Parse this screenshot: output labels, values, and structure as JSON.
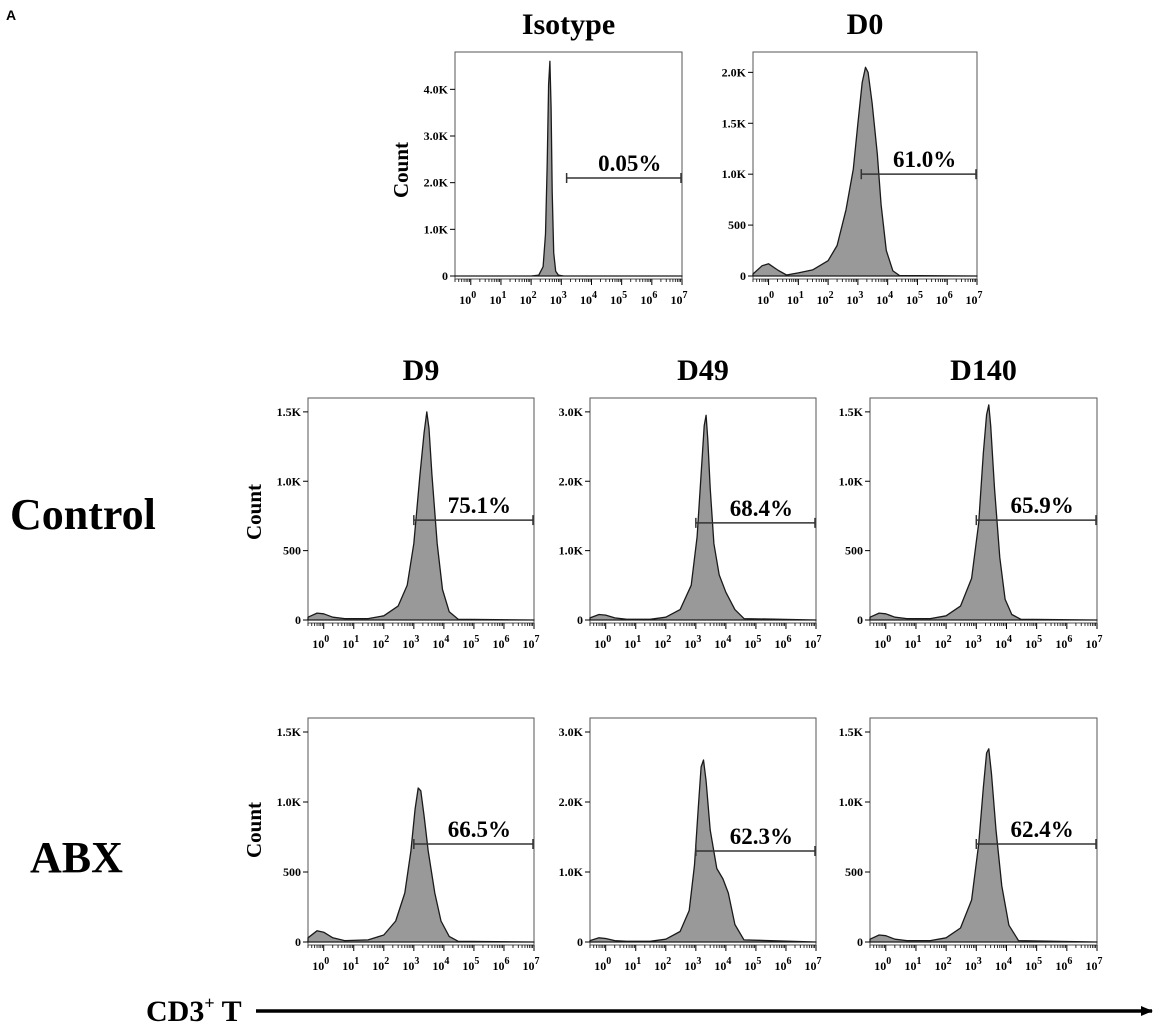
{
  "figure": {
    "panel_letter": "A",
    "row_labels": [
      "Control",
      "ABX"
    ],
    "count_label": "Count",
    "x_axis_label_main": "CD3",
    "x_axis_label_sup": "+",
    "x_axis_label_suffix": " T",
    "colors": {
      "fill": "#999999",
      "stroke": "#1a1a1a",
      "frame": "#555555"
    }
  },
  "chart_data": [
    {
      "type": "area",
      "panel": "Isotype",
      "title": "Isotype",
      "ylabel": "Count",
      "y_ticks": [
        0,
        1000,
        2000,
        3000,
        4000
      ],
      "y_tick_labels": [
        "0",
        "1.0K",
        "2.0K",
        "3.0K",
        "4.0K"
      ],
      "ylim": [
        0,
        4800
      ],
      "x_scale": "log",
      "x_ticks": [
        1,
        10,
        100,
        1000,
        10000,
        100000,
        1000000,
        10000000
      ],
      "x_tick_labels": [
        "10^0",
        "10^1",
        "10^2",
        "10^3",
        "10^4",
        "10^5",
        "10^6",
        "10^7"
      ],
      "xlim": [
        0.3,
        10000000
      ],
      "gate": {
        "label": "0.05%",
        "from": 1500,
        "to": 10000000,
        "count_level": 2100
      },
      "curve": {
        "x": [
          0.3,
          100,
          180,
          250,
          300,
          340,
          380,
          420,
          460,
          500,
          560,
          650,
          800,
          1200,
          10000000
        ],
        "y": [
          0,
          0,
          20,
          200,
          900,
          2400,
          4100,
          4600,
          3600,
          1800,
          500,
          100,
          20,
          0,
          0
        ]
      }
    },
    {
      "type": "area",
      "panel": "D0",
      "title": "D0",
      "y_ticks": [
        0,
        500,
        1000,
        1500,
        2000
      ],
      "y_tick_labels": [
        "0",
        "500",
        "1.0K",
        "1.5K",
        "2.0K"
      ],
      "ylim": [
        0,
        2200
      ],
      "x_scale": "log",
      "x_ticks": [
        1,
        10,
        100,
        1000,
        10000,
        100000,
        1000000,
        10000000
      ],
      "x_tick_labels": [
        "10^0",
        "10^1",
        "10^2",
        "10^3",
        "10^4",
        "10^5",
        "10^6",
        "10^7"
      ],
      "xlim": [
        0.3,
        10000000
      ],
      "gate": {
        "label": "61.0%",
        "from": 1300,
        "to": 10000000,
        "count_level": 1000
      },
      "curve": {
        "x": [
          0.3,
          0.6,
          1.0,
          2.0,
          4.0,
          10,
          30,
          100,
          200,
          400,
          700,
          1000,
          1400,
          1800,
          2200,
          3000,
          4500,
          6000,
          9000,
          15000,
          25000,
          10000000
        ],
        "y": [
          20,
          100,
          120,
          60,
          10,
          30,
          60,
          150,
          300,
          650,
          1050,
          1500,
          1900,
          2050,
          2000,
          1700,
          1200,
          700,
          250,
          50,
          5,
          0
        ]
      }
    },
    {
      "type": "area",
      "panel": "Control-D9",
      "title": "D9",
      "ylabel": "Count",
      "y_ticks": [
        0,
        500,
        1000,
        1500
      ],
      "y_tick_labels": [
        "0",
        "500",
        "1.0K",
        "1.5K"
      ],
      "ylim": [
        0,
        1600
      ],
      "x_scale": "log",
      "x_ticks": [
        1,
        10,
        100,
        1000,
        10000,
        100000,
        1000000,
        10000000
      ],
      "x_tick_labels": [
        "10^0",
        "10^1",
        "10^2",
        "10^3",
        "10^4",
        "10^5",
        "10^6",
        "10^7"
      ],
      "xlim": [
        0.3,
        10000000
      ],
      "gate": {
        "label": "75.1%",
        "from": 1000,
        "to": 10000000,
        "count_level": 720
      },
      "curve": {
        "x": [
          0.3,
          0.6,
          1.0,
          2.0,
          5,
          30,
          100,
          300,
          600,
          1000,
          1600,
          2200,
          2700,
          3200,
          4000,
          6000,
          9000,
          15000,
          30000,
          10000000
        ],
        "y": [
          20,
          50,
          45,
          20,
          10,
          10,
          30,
          100,
          250,
          550,
          1050,
          1350,
          1500,
          1380,
          1050,
          550,
          220,
          60,
          5,
          0
        ]
      }
    },
    {
      "type": "area",
      "panel": "Control-D49",
      "title": "D49",
      "y_ticks": [
        0,
        1000,
        2000,
        3000
      ],
      "y_tick_labels": [
        "0",
        "1.0K",
        "2.0K",
        "3.0K"
      ],
      "ylim": [
        0,
        3200
      ],
      "x_scale": "log",
      "x_ticks": [
        1,
        10,
        100,
        1000,
        10000,
        100000,
        1000000,
        10000000
      ],
      "x_tick_labels": [
        "10^0",
        "10^1",
        "10^2",
        "10^3",
        "10^4",
        "10^5",
        "10^6",
        "10^7"
      ],
      "xlim": [
        0.3,
        10000000
      ],
      "gate": {
        "label": "68.4%",
        "from": 1000,
        "to": 10000000,
        "count_level": 1400
      },
      "curve": {
        "x": [
          0.3,
          0.6,
          1.0,
          2.0,
          5,
          30,
          100,
          300,
          700,
          1100,
          1500,
          1900,
          2200,
          2500,
          3000,
          4000,
          6000,
          10000,
          20000,
          40000,
          10000000
        ],
        "y": [
          30,
          80,
          70,
          30,
          10,
          10,
          40,
          150,
          500,
          1200,
          2100,
          2800,
          2950,
          2600,
          1900,
          1100,
          650,
          400,
          150,
          20,
          0
        ]
      }
    },
    {
      "type": "area",
      "panel": "Control-D140",
      "title": "D140",
      "y_ticks": [
        0,
        500,
        1000,
        1500
      ],
      "y_tick_labels": [
        "0",
        "500",
        "1.0K",
        "1.5K"
      ],
      "ylim": [
        0,
        1600
      ],
      "x_scale": "log",
      "x_ticks": [
        1,
        10,
        100,
        1000,
        10000,
        100000,
        1000000,
        10000000
      ],
      "x_tick_labels": [
        "10^0",
        "10^1",
        "10^2",
        "10^3",
        "10^4",
        "10^5",
        "10^6",
        "10^7"
      ],
      "xlim": [
        0.3,
        10000000
      ],
      "gate": {
        "label": "65.9%",
        "from": 1000,
        "to": 10000000,
        "count_level": 720
      },
      "curve": {
        "x": [
          0.3,
          0.6,
          1.0,
          2.0,
          5,
          30,
          100,
          300,
          700,
          1200,
          1700,
          2200,
          2600,
          3000,
          4000,
          6000,
          9000,
          15000,
          30000,
          10000000
        ],
        "y": [
          20,
          50,
          45,
          20,
          10,
          10,
          30,
          100,
          300,
          700,
          1200,
          1480,
          1550,
          1400,
          950,
          450,
          150,
          40,
          5,
          0
        ]
      }
    },
    {
      "type": "area",
      "panel": "ABX-D9",
      "title": "",
      "ylabel": "Count",
      "y_ticks": [
        0,
        500,
        1000,
        1500
      ],
      "y_tick_labels": [
        "0",
        "500",
        "1.0K",
        "1.5K"
      ],
      "ylim": [
        0,
        1600
      ],
      "x_scale": "log",
      "x_ticks": [
        1,
        10,
        100,
        1000,
        10000,
        100000,
        1000000,
        10000000
      ],
      "x_tick_labels": [
        "10^0",
        "10^1",
        "10^2",
        "10^3",
        "10^4",
        "10^5",
        "10^6",
        "10^7"
      ],
      "xlim": [
        0.3,
        10000000
      ],
      "gate": {
        "label": "66.5%",
        "from": 1000,
        "to": 10000000,
        "count_level": 700
      },
      "curve": {
        "x": [
          0.3,
          0.6,
          1.0,
          2.0,
          5,
          30,
          100,
          250,
          500,
          800,
          1100,
          1400,
          1700,
          2200,
          3000,
          5000,
          8000,
          15000,
          30000,
          10000000
        ],
        "y": [
          30,
          80,
          70,
          30,
          10,
          15,
          50,
          150,
          350,
          650,
          950,
          1100,
          1080,
          900,
          650,
          350,
          150,
          40,
          5,
          0
        ]
      }
    },
    {
      "type": "area",
      "panel": "ABX-D49",
      "title": "",
      "y_ticks": [
        0,
        1000,
        2000,
        3000
      ],
      "y_tick_labels": [
        "0",
        "1.0K",
        "2.0K",
        "3.0K"
      ],
      "ylim": [
        0,
        3200
      ],
      "x_scale": "log",
      "x_ticks": [
        1,
        10,
        100,
        1000,
        10000,
        100000,
        1000000,
        10000000
      ],
      "x_tick_labels": [
        "10^0",
        "10^1",
        "10^2",
        "10^3",
        "10^4",
        "10^5",
        "10^6",
        "10^7"
      ],
      "xlim": [
        0.3,
        10000000
      ],
      "gate": {
        "label": "62.3%",
        "from": 1000,
        "to": 10000000,
        "count_level": 1300
      },
      "curve": {
        "x": [
          0.3,
          0.6,
          1.0,
          2.0,
          5,
          30,
          100,
          300,
          600,
          900,
          1200,
          1500,
          1800,
          2200,
          3000,
          5000,
          8000,
          12000,
          20000,
          40000,
          10000000
        ],
        "y": [
          20,
          60,
          50,
          20,
          10,
          10,
          40,
          150,
          450,
          1100,
          1900,
          2500,
          2600,
          2300,
          1600,
          1050,
          900,
          700,
          250,
          30,
          0
        ]
      }
    },
    {
      "type": "area",
      "panel": "ABX-D140",
      "title": "",
      "y_ticks": [
        0,
        500,
        1000,
        1500
      ],
      "y_tick_labels": [
        "0",
        "500",
        "1.0K",
        "1.5K"
      ],
      "ylim": [
        0,
        1600
      ],
      "x_scale": "log",
      "x_ticks": [
        1,
        10,
        100,
        1000,
        10000,
        100000,
        1000000,
        10000000
      ],
      "x_tick_labels": [
        "10^0",
        "10^1",
        "10^2",
        "10^3",
        "10^4",
        "10^5",
        "10^6",
        "10^7"
      ],
      "xlim": [
        0.3,
        10000000
      ],
      "gate": {
        "label": "62.4%",
        "from": 1000,
        "to": 10000000,
        "count_level": 700
      },
      "curve": {
        "x": [
          0.3,
          0.6,
          1.0,
          2.0,
          5,
          30,
          100,
          300,
          700,
          1200,
          1700,
          2200,
          2600,
          3200,
          4500,
          7000,
          12000,
          25000,
          10000000
        ],
        "y": [
          20,
          50,
          45,
          20,
          10,
          10,
          30,
          100,
          300,
          700,
          1100,
          1350,
          1380,
          1200,
          800,
          400,
          120,
          10,
          0
        ]
      }
    }
  ]
}
